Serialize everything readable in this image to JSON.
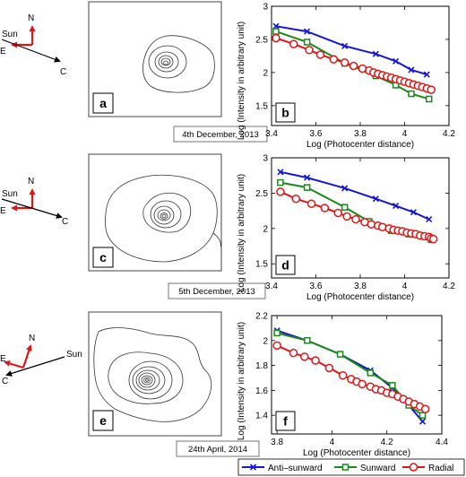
{
  "rows": [
    {
      "compass": {
        "north": "N",
        "east": "E",
        "sun": "Sun",
        "comet": "C"
      },
      "image_panel_label": "a",
      "date_label": "4th December, 2013"
    },
    {
      "compass": {
        "north": "N",
        "east": "E",
        "sun": "Sun",
        "comet": "C"
      },
      "image_panel_label": "c",
      "date_label": "5th December, 2013"
    },
    {
      "compass": {
        "north": "N",
        "east": "E",
        "sun": "Sun",
        "comet": "C"
      },
      "image_panel_label": "e",
      "date_label": "24th April, 2014"
    }
  ],
  "legend": {
    "placement": "bottom",
    "entries": [
      {
        "name": "Anti–sunward",
        "color": "#1515d6",
        "marker": "x"
      },
      {
        "name": "Sunward",
        "color": "#1a8a1a",
        "marker": "square"
      },
      {
        "name": "Radial",
        "color": "#e01515",
        "marker": "circle"
      }
    ]
  },
  "chart_data": [
    {
      "type": "line",
      "panel_label": "b",
      "xlabel": "Log (Photocenter distance)",
      "ylabel": "Log (Intensity in arbitrary unit)",
      "xlim": [
        3.4,
        4.2
      ],
      "ylim": [
        1.2,
        3.0
      ],
      "xticks": [
        3.4,
        3.6,
        3.8,
        4,
        4.2
      ],
      "yticks": [
        1.5,
        2,
        2.5,
        3
      ],
      "xtick_labels": [
        "3.4",
        "3.6",
        "3.8",
        "4",
        "4.2"
      ],
      "ytick_labels": [
        "1.5",
        "2",
        "2.5",
        "3"
      ],
      "grid": false,
      "series": [
        {
          "name": "Anti–sunward",
          "x": [
            3.42,
            3.56,
            3.73,
            3.87,
            3.96,
            4.03,
            4.1
          ],
          "y": [
            2.7,
            2.62,
            2.4,
            2.28,
            2.17,
            2.04,
            1.97
          ]
        },
        {
          "name": "Sunward",
          "x": [
            3.42,
            3.56,
            3.73,
            3.87,
            3.96,
            4.03,
            4.11
          ],
          "y": [
            2.62,
            2.46,
            2.14,
            1.95,
            1.81,
            1.68,
            1.6
          ]
        },
        {
          "name": "Radial",
          "x": [
            3.42,
            3.5,
            3.57,
            3.62,
            3.68,
            3.73,
            3.77,
            3.81,
            3.84,
            3.86,
            3.88,
            3.9,
            3.92,
            3.94,
            3.96,
            3.98,
            4.0,
            4.02,
            4.04,
            4.06,
            4.08,
            4.1,
            4.12
          ],
          "y": [
            2.52,
            2.43,
            2.34,
            2.27,
            2.2,
            2.15,
            2.1,
            2.06,
            2.03,
            2.0,
            1.98,
            1.96,
            1.94,
            1.92,
            1.9,
            1.88,
            1.86,
            1.84,
            1.82,
            1.8,
            1.78,
            1.76,
            1.74
          ]
        }
      ]
    },
    {
      "type": "line",
      "panel_label": "d",
      "xlabel": "Log (Photocenter distance)",
      "ylabel": "Log (Intensity in arbitrary unit)",
      "xlim": [
        3.4,
        4.2
      ],
      "ylim": [
        1.3,
        3.0
      ],
      "xticks": [
        3.4,
        3.6,
        3.8,
        4,
        4.2
      ],
      "yticks": [
        1.5,
        2,
        2.5,
        3
      ],
      "xtick_labels": [
        "3.4",
        "3.6",
        "3.8",
        "4",
        "4.2"
      ],
      "ytick_labels": [
        "1.5",
        "2",
        "2.5",
        "3"
      ],
      "grid": false,
      "series": [
        {
          "name": "Anti–sunward",
          "x": [
            3.44,
            3.56,
            3.73,
            3.87,
            3.96,
            4.04,
            4.11
          ],
          "y": [
            2.8,
            2.72,
            2.57,
            2.42,
            2.32,
            2.23,
            2.13
          ]
        },
        {
          "name": "Sunward",
          "x": [
            3.44,
            3.56,
            3.73,
            3.84,
            3.94,
            4.02,
            4.12
          ],
          "y": [
            2.65,
            2.58,
            2.3,
            2.1,
            1.97,
            1.92,
            1.84
          ]
        },
        {
          "name": "Radial",
          "x": [
            3.44,
            3.51,
            3.58,
            3.64,
            3.7,
            3.74,
            3.78,
            3.82,
            3.85,
            3.88,
            3.9,
            3.93,
            3.95,
            3.97,
            3.99,
            4.01,
            4.03,
            4.05,
            4.07,
            4.09,
            4.11,
            4.12,
            4.13
          ],
          "y": [
            2.52,
            2.42,
            2.35,
            2.29,
            2.22,
            2.17,
            2.13,
            2.09,
            2.06,
            2.04,
            2.02,
            2.0,
            1.98,
            1.97,
            1.96,
            1.94,
            1.93,
            1.92,
            1.9,
            1.89,
            1.88,
            1.86,
            1.85
          ]
        }
      ]
    },
    {
      "type": "line",
      "panel_label": "f",
      "xlabel": "Log (Photocenter distance)",
      "ylabel": "Log (Intensity in arbitrary unit)",
      "xlim": [
        3.78,
        4.4
      ],
      "ylim": [
        1.25,
        2.2
      ],
      "xticks": [
        3.8,
        4,
        4.2,
        4.4
      ],
      "yticks": [
        1.4,
        1.6,
        1.8,
        2,
        2.2
      ],
      "xtick_labels": [
        "3.8",
        "4",
        "4.2",
        "4.4"
      ],
      "ytick_labels": [
        "1.4",
        "1.6",
        "1.8",
        "2",
        "2.2"
      ],
      "grid": false,
      "series": [
        {
          "name": "Anti–sunward",
          "x": [
            3.8,
            3.91,
            4.03,
            4.14,
            4.22,
            4.28,
            4.33
          ],
          "y": [
            2.08,
            2.0,
            1.89,
            1.76,
            1.62,
            1.48,
            1.35
          ]
        },
        {
          "name": "Sunward",
          "x": [
            3.8,
            3.91,
            4.03,
            4.14,
            4.22,
            4.28,
            4.33
          ],
          "y": [
            2.06,
            2.0,
            1.89,
            1.74,
            1.64,
            1.48,
            1.4
          ]
        },
        {
          "name": "Radial",
          "x": [
            3.8,
            3.86,
            3.9,
            3.94,
            3.99,
            4.04,
            4.07,
            4.09,
            4.11,
            4.14,
            4.16,
            4.18,
            4.2,
            4.22,
            4.24,
            4.26,
            4.28,
            4.3,
            4.32,
            4.34
          ],
          "y": [
            1.96,
            1.9,
            1.87,
            1.84,
            1.78,
            1.72,
            1.69,
            1.67,
            1.65,
            1.63,
            1.61,
            1.6,
            1.58,
            1.57,
            1.55,
            1.53,
            1.51,
            1.49,
            1.47,
            1.45
          ]
        }
      ]
    }
  ]
}
